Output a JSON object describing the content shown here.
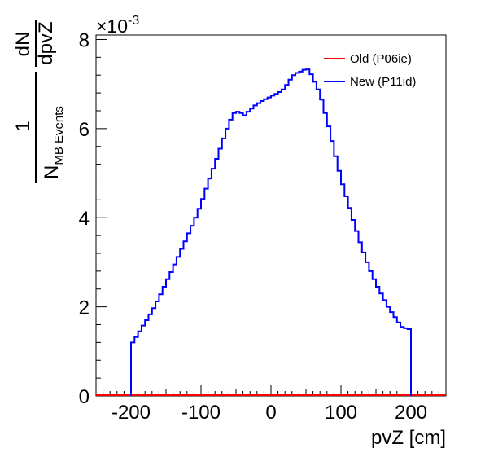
{
  "chart_data": {
    "type": "line",
    "style": "histogram-step",
    "title": "",
    "xlabel": "pvZ [cm]",
    "ylabel": {
      "numerator_left": "1",
      "denominator_left": "N",
      "denominator_sub": "MB Events",
      "numerator_right": "dN",
      "denominator_right": "dpvZ"
    },
    "y_multiplier": "×10",
    "y_exponent": "-3",
    "xlim": [
      -250,
      250
    ],
    "ylim": [
      0,
      8.1
    ],
    "x_ticks": [
      -200,
      -100,
      0,
      100,
      200
    ],
    "x_tick_labels": [
      "-200",
      "-100",
      "0",
      "100",
      "200"
    ],
    "y_ticks": [
      0,
      2,
      4,
      6,
      8
    ],
    "y_tick_labels": [
      "0",
      "2",
      "4",
      "6",
      "8"
    ],
    "bin_width": 5,
    "grid": false,
    "legend_position": "top-right",
    "series": [
      {
        "name": "Old (P06ie)",
        "color": "#ff0000",
        "x": [
          -250,
          -200,
          -150,
          -100,
          -50,
          0,
          50,
          100,
          150,
          200,
          250
        ],
        "y": [
          0,
          0,
          0,
          0,
          0,
          0,
          0,
          0,
          0,
          0,
          0
        ]
      },
      {
        "name": "New (P11id)",
        "color": "#0000ff",
        "x": [
          -200,
          -195,
          -190,
          -185,
          -180,
          -175,
          -170,
          -165,
          -160,
          -155,
          -150,
          -145,
          -140,
          -135,
          -130,
          -125,
          -120,
          -115,
          -110,
          -105,
          -100,
          -95,
          -90,
          -85,
          -80,
          -75,
          -70,
          -65,
          -60,
          -55,
          -50,
          -45,
          -40,
          -35,
          -30,
          -25,
          -20,
          -15,
          -10,
          -5,
          0,
          5,
          10,
          15,
          20,
          25,
          30,
          35,
          40,
          45,
          50,
          55,
          60,
          65,
          70,
          75,
          80,
          85,
          90,
          95,
          100,
          105,
          110,
          115,
          120,
          125,
          130,
          135,
          140,
          145,
          150,
          155,
          160,
          165,
          170,
          175,
          180,
          185,
          190,
          195
        ],
        "y": [
          1.2,
          1.32,
          1.45,
          1.58,
          1.7,
          1.83,
          1.97,
          2.12,
          2.28,
          2.45,
          2.62,
          2.78,
          2.95,
          3.12,
          3.3,
          3.47,
          3.65,
          3.82,
          4.0,
          4.2,
          4.42,
          4.65,
          4.88,
          5.1,
          5.32,
          5.55,
          5.78,
          6.0,
          6.2,
          6.35,
          6.38,
          6.35,
          6.3,
          6.38,
          6.45,
          6.52,
          6.57,
          6.62,
          6.66,
          6.7,
          6.74,
          6.78,
          6.82,
          6.88,
          6.98,
          7.1,
          7.2,
          7.25,
          7.28,
          7.32,
          7.33,
          7.22,
          7.05,
          6.88,
          6.65,
          6.35,
          6.05,
          5.72,
          5.38,
          5.05,
          4.75,
          4.48,
          4.22,
          3.95,
          3.7,
          3.45,
          3.22,
          3.0,
          2.8,
          2.62,
          2.45,
          2.3,
          2.15,
          2.0,
          1.88,
          1.77,
          1.65,
          1.55,
          1.52,
          1.5
        ]
      }
    ]
  }
}
